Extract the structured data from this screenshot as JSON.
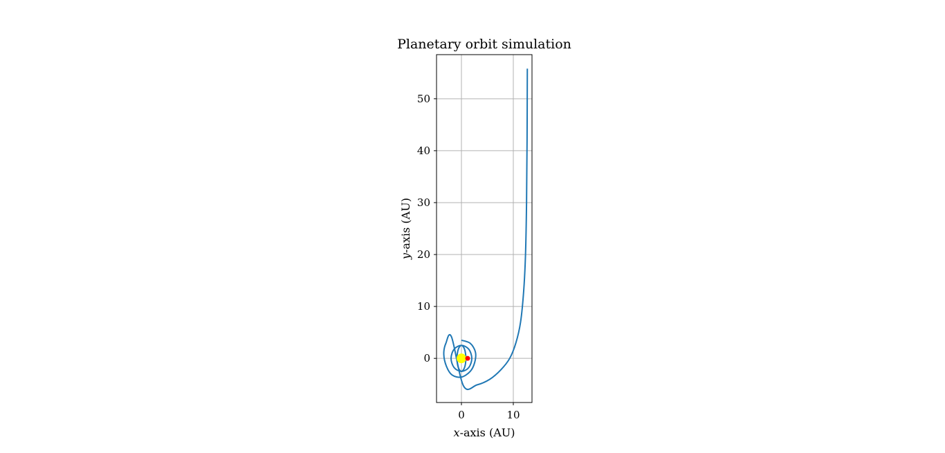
{
  "chart_data": {
    "type": "line",
    "title": "Planetary orbit simulation",
    "xlabel": {
      "var": "x",
      "rest": "-axis (AU)"
    },
    "ylabel": {
      "var": "y",
      "rest": "-axis (AU)"
    },
    "xlim": [
      -4.8,
      13.6
    ],
    "ylim": [
      -8.5,
      58.5
    ],
    "xticks": [
      0,
      10
    ],
    "xtick_labels": [
      "0",
      "10"
    ],
    "yticks": [
      0,
      10,
      20,
      30,
      40,
      50
    ],
    "ytick_labels": [
      "0",
      "10",
      "20",
      "30",
      "40",
      "50"
    ],
    "grid": true,
    "colors": {
      "series": "#1f77b4",
      "grid": "#b0b0b0",
      "star": "#ffff00",
      "planet": "#ff0000"
    },
    "series": [
      {
        "x": [
          0,
          0.6,
          0.85,
          0.6,
          0,
          -0.6,
          -0.85,
          -0.6,
          0
        ],
        "y": [
          2.5,
          1.77,
          0,
          -1.77,
          -2.5,
          -1.77,
          0,
          1.77,
          2.5
        ]
      },
      {
        "x": [
          0,
          1.41,
          2.0,
          1.41,
          0,
          -1.41,
          -2.0,
          -1.41,
          0
        ],
        "y": [
          2.5,
          1.77,
          0,
          -1.77,
          -2.5,
          -1.77,
          0,
          1.77,
          2.5
        ]
      },
      {
        "x": [
          0,
          1.7,
          2.7,
          2.55,
          1.7,
          0,
          -1.8,
          -2.9,
          -3.4,
          -3.0,
          -1.9,
          0.4,
          3.0,
          5.5,
          7.6,
          9.3,
          10.5,
          11.4,
          12.0,
          12.35,
          12.55,
          12.65,
          12.7
        ],
        "y": [
          3.5,
          2.9,
          1.2,
          -0.8,
          -2.5,
          -3.6,
          -3.2,
          -1.5,
          0.8,
          2.9,
          4.1,
          -5.3,
          -5.1,
          -4.0,
          -2.2,
          0.0,
          3.0,
          7.0,
          13.0,
          20.0,
          30.0,
          42.0,
          55.8
        ]
      }
    ],
    "markers": [
      {
        "name": "star",
        "x": 0,
        "y": 0
      },
      {
        "name": "planet",
        "x": 1.2,
        "y": 0
      }
    ]
  }
}
